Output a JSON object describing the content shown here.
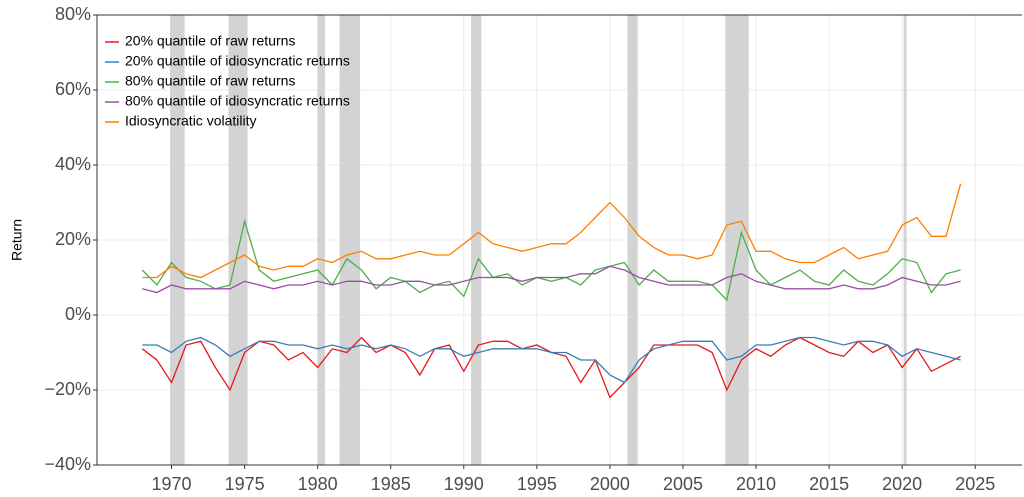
{
  "chart_data": {
    "type": "line",
    "y_label": "Return",
    "legend": "top-left",
    "grid": true,
    "shade_color": "#d3d3d3",
    "shaded_periods": [
      [
        1969.9,
        1970.9
      ],
      [
        1973.9,
        1975.2
      ],
      [
        1980.0,
        1980.5
      ],
      [
        1981.5,
        1982.9
      ],
      [
        1990.5,
        1991.2
      ],
      [
        2001.2,
        2001.9
      ],
      [
        2007.9,
        2009.5
      ],
      [
        2020.1,
        2020.3
      ]
    ],
    "xlim": [
      1964.9,
      2028.2
    ],
    "ylim": [
      -40,
      80
    ],
    "xticks": [
      1970,
      1975,
      1980,
      1985,
      1990,
      1995,
      2000,
      2005,
      2010,
      2015,
      2020,
      2025
    ],
    "yticks": [
      {
        "value": -40,
        "label": "−40%"
      },
      {
        "value": -20,
        "label": "−20%"
      },
      {
        "value": 0,
        "label": "0%"
      },
      {
        "value": 20,
        "label": "20%"
      },
      {
        "value": 40,
        "label": "40%"
      },
      {
        "value": 60,
        "label": "60%"
      },
      {
        "value": 80,
        "label": "80%"
      }
    ],
    "x": [
      1968,
      1969,
      1970,
      1971,
      1972,
      1973,
      1974,
      1975,
      1976,
      1977,
      1978,
      1979,
      1980,
      1981,
      1982,
      1983,
      1984,
      1985,
      1986,
      1987,
      1988,
      1989,
      1990,
      1991,
      1992,
      1993,
      1994,
      1995,
      1996,
      1997,
      1998,
      1999,
      2000,
      2001,
      2002,
      2003,
      2004,
      2005,
      2006,
      2007,
      2008,
      2009,
      2010,
      2011,
      2012,
      2013,
      2014,
      2015,
      2016,
      2017,
      2018,
      2019,
      2020,
      2021,
      2022,
      2023,
      2024
    ],
    "series": [
      {
        "name": "20% quantile of raw returns",
        "color": "#e41a1c",
        "values": [
          -9,
          -12,
          -18,
          -8,
          -7,
          -14,
          -20,
          -10,
          -7,
          -8,
          -12,
          -10,
          -14,
          -9,
          -10,
          -6,
          -10,
          -8,
          -10,
          -16,
          -9,
          -8,
          -15,
          -8,
          -7,
          -7,
          -9,
          -8,
          -10,
          -11,
          -18,
          -12,
          -22,
          -18,
          -14,
          -8,
          -8,
          -8,
          -8,
          -10,
          -20,
          -12,
          -9,
          -11,
          -8,
          -6,
          -8,
          -10,
          -11,
          -7,
          -10,
          -8,
          -14,
          -9,
          -15,
          -13,
          -11
        ]
      },
      {
        "name": "20% quantile of idiosyncratic returns",
        "color": "#377eb8",
        "values": [
          -8,
          -8,
          -10,
          -7,
          -6,
          -8,
          -11,
          -9,
          -7,
          -7,
          -8,
          -8,
          -9,
          -8,
          -9,
          -8,
          -9,
          -8,
          -9,
          -11,
          -9,
          -9,
          -11,
          -10,
          -9,
          -9,
          -9,
          -9,
          -10,
          -10,
          -12,
          -12,
          -16,
          -18,
          -12,
          -9,
          -8,
          -7,
          -7,
          -7,
          -12,
          -11,
          -8,
          -8,
          -7,
          -6,
          -6,
          -7,
          -8,
          -7,
          -7,
          -8,
          -11,
          -9,
          -10,
          -11,
          -12
        ]
      },
      {
        "name": "80% quantile of raw returns",
        "color": "#4daf4a",
        "values": [
          12,
          8,
          14,
          10,
          9,
          7,
          8,
          25,
          12,
          9,
          10,
          11,
          12,
          8,
          15,
          12,
          7,
          10,
          9,
          6,
          8,
          9,
          5,
          15,
          10,
          11,
          8,
          10,
          9,
          10,
          8,
          12,
          13,
          14,
          8,
          12,
          9,
          9,
          9,
          8,
          4,
          22,
          12,
          8,
          10,
          12,
          9,
          8,
          12,
          9,
          8,
          11,
          15,
          14,
          6,
          11,
          12
        ]
      },
      {
        "name": "80% quantile of idiosyncratic returns",
        "color": "#984ea3",
        "values": [
          7,
          6,
          8,
          7,
          7,
          7,
          7,
          9,
          8,
          7,
          8,
          8,
          9,
          8,
          9,
          9,
          8,
          8,
          9,
          9,
          8,
          8,
          9,
          10,
          10,
          10,
          9,
          10,
          10,
          10,
          11,
          11,
          13,
          12,
          10,
          9,
          8,
          8,
          8,
          8,
          10,
          11,
          9,
          8,
          7,
          7,
          7,
          7,
          8,
          7,
          7,
          8,
          10,
          9,
          8,
          8,
          9
        ]
      },
      {
        "name": "Idiosyncratic volatility",
        "color": "#ff7f00",
        "values": [
          10,
          10,
          13,
          11,
          10,
          12,
          14,
          16,
          13,
          12,
          13,
          13,
          15,
          14,
          16,
          17,
          15,
          15,
          16,
          17,
          16,
          16,
          19,
          22,
          19,
          18,
          17,
          18,
          19,
          19,
          22,
          26,
          30,
          26,
          21,
          18,
          16,
          16,
          15,
          16,
          24,
          25,
          17,
          17,
          15,
          14,
          14,
          16,
          18,
          15,
          16,
          17,
          24,
          26,
          21,
          21,
          35
        ]
      }
    ]
  }
}
